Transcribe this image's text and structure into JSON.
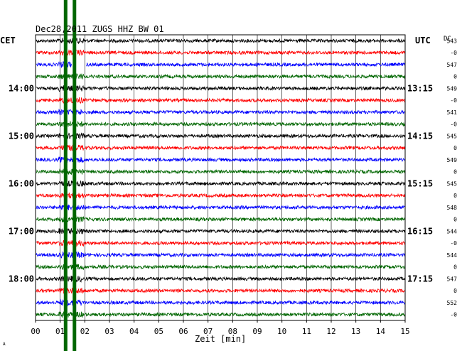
{
  "chart_data": {
    "type": "line",
    "title": "Dec28,2011   ZUGS HHZ BW 01",
    "xlabel": "Zeit [min]",
    "left_axis_label": "CET",
    "right_axis_label": "UTC",
    "dc_label": "DC",
    "xlim": [
      0,
      15
    ],
    "x_ticks": [
      "00",
      "01",
      "02",
      "03",
      "04",
      "05",
      "06",
      "07",
      "08",
      "09",
      "10",
      "11",
      "12",
      "13",
      "14",
      "15"
    ],
    "row_count": 24,
    "trace_colors": [
      "#000000",
      "#ff0000",
      "#0000ff",
      "#006600"
    ],
    "left_hour_labels": [
      {
        "row": 4,
        "text": "14:00"
      },
      {
        "row": 8,
        "text": "15:00"
      },
      {
        "row": 12,
        "text": "16:00"
      },
      {
        "row": 16,
        "text": "17:00"
      },
      {
        "row": 20,
        "text": "18:00"
      }
    ],
    "right_hour_labels": [
      {
        "row": 4,
        "text": "13:15"
      },
      {
        "row": 8,
        "text": "14:15"
      },
      {
        "row": 12,
        "text": "15:15"
      },
      {
        "row": 16,
        "text": "16:15"
      },
      {
        "row": 20,
        "text": "17:15"
      }
    ],
    "dc_values": [
      "543",
      "-0",
      "547",
      "0",
      "549",
      "-0",
      "541",
      "-0",
      "545",
      "0",
      "549",
      "0",
      "545",
      "0",
      "548",
      "0",
      "544",
      "-0",
      "544",
      "0",
      "547",
      "0",
      "552",
      "-0"
    ],
    "data_gap": {
      "row": 2,
      "x_start": 1.47,
      "x_end": 2.05
    },
    "event_markers": [
      {
        "x_min": 1.22,
        "color": "#006600"
      },
      {
        "x_min": 1.58,
        "color": "#006600"
      }
    ],
    "event_zone": {
      "x_start": 0.95,
      "x_end": 1.95
    }
  },
  "corner_mark": "A"
}
